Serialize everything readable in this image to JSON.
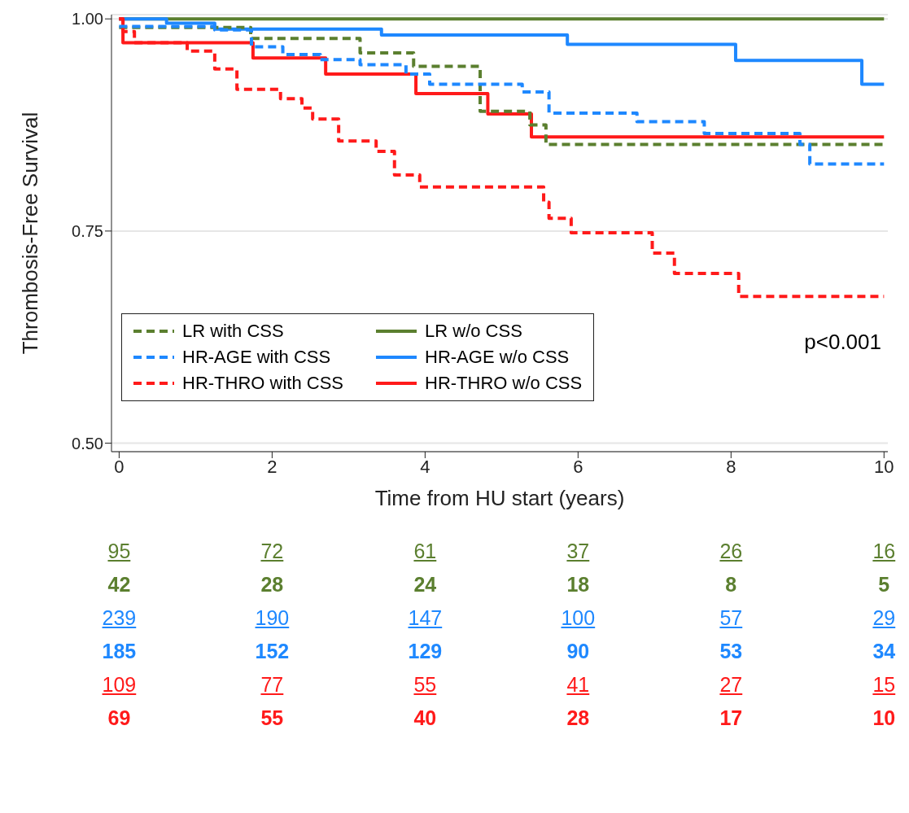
{
  "chart_data": {
    "type": "step",
    "xlabel": "Time from HU start (years)",
    "ylabel": "Thrombosis-Free Survival",
    "xlim": [
      -0.1,
      10.05
    ],
    "xticks": [
      0,
      2,
      4,
      6,
      8,
      10
    ],
    "ylim": [
      0.49,
      1.005
    ],
    "yticks": [
      {
        "value": 0.5,
        "label": "0.50"
      },
      {
        "value": 0.75,
        "label": "0.75"
      },
      {
        "value": 1.0,
        "label": "1.00"
      }
    ],
    "grid": "y",
    "legend": "bottom left",
    "marker": "none",
    "series": [
      {
        "name": "LR with CSS",
        "color": "#5b7f2f",
        "line_style": "dashed",
        "x": [
          0,
          1.72,
          3.15,
          3.85,
          4.72,
          5.37,
          5.58,
          10
        ],
        "values": [
          0.99,
          0.977,
          0.96,
          0.944,
          0.891,
          0.875,
          0.852,
          0.852
        ]
      },
      {
        "name": "LR w/o CSS",
        "color": "#5b7f2f",
        "line_style": "solid",
        "x": [
          0,
          10
        ],
        "values": [
          1,
          1
        ]
      },
      {
        "name": "HR-AGE with CSS",
        "color": "#1e88ff",
        "line_style": "dashed",
        "x": [
          0,
          1.25,
          1.73,
          2.14,
          2.63,
          3.15,
          3.75,
          4.06,
          5.27,
          5.62,
          6.77,
          7.65,
          8.9,
          9.03,
          10
        ],
        "values": [
          0.991,
          0.987,
          0.967,
          0.958,
          0.952,
          0.946,
          0.935,
          0.923,
          0.914,
          0.889,
          0.879,
          0.865,
          0.852,
          0.829,
          0.829
        ]
      },
      {
        "name": "HR-AGE w/o CSS",
        "color": "#1e88ff",
        "line_style": "solid",
        "x": [
          0,
          0.62,
          1.25,
          3.43,
          5.86,
          8.06,
          9.71,
          10
        ],
        "values": [
          1,
          0.995,
          0.988,
          0.981,
          0.97,
          0.951,
          0.923,
          0.923
        ]
      },
      {
        "name": "HR-THRO with CSS",
        "color": "#ff1a1a",
        "line_style": "dashed",
        "x": [
          0,
          0.05,
          0.2,
          0.89,
          1.25,
          1.54,
          2.11,
          2.39,
          2.53,
          2.87,
          3.36,
          3.6,
          3.93,
          5.55,
          5.62,
          5.91,
          6.97,
          7.26,
          8.1,
          10
        ],
        "values": [
          1,
          0.985,
          0.972,
          0.962,
          0.941,
          0.917,
          0.906,
          0.895,
          0.882,
          0.856,
          0.844,
          0.816,
          0.802,
          0.784,
          0.765,
          0.748,
          0.724,
          0.7,
          0.673,
          0.673
        ]
      },
      {
        "name": "HR-THRO w/o CSS",
        "color": "#ff1a1a",
        "line_style": "solid",
        "x": [
          0,
          0.05,
          1.75,
          2.7,
          3.88,
          4.82,
          5.39,
          10
        ],
        "values": [
          1,
          0.972,
          0.954,
          0.935,
          0.912,
          0.888,
          0.861,
          0.861
        ]
      }
    ],
    "annotations": [
      "p<0.001",
      "95",
      "72",
      "61",
      "37",
      "26",
      "16",
      "42",
      "28",
      "24",
      "18",
      "8",
      "5",
      "239",
      "190",
      "147",
      "100",
      "57",
      "29",
      "185",
      "152",
      "129",
      "90",
      "53",
      "34",
      "109",
      "77",
      "55",
      "41",
      "27",
      "15",
      "69",
      "55",
      "40",
      "28",
      "17",
      "10"
    ]
  }
}
